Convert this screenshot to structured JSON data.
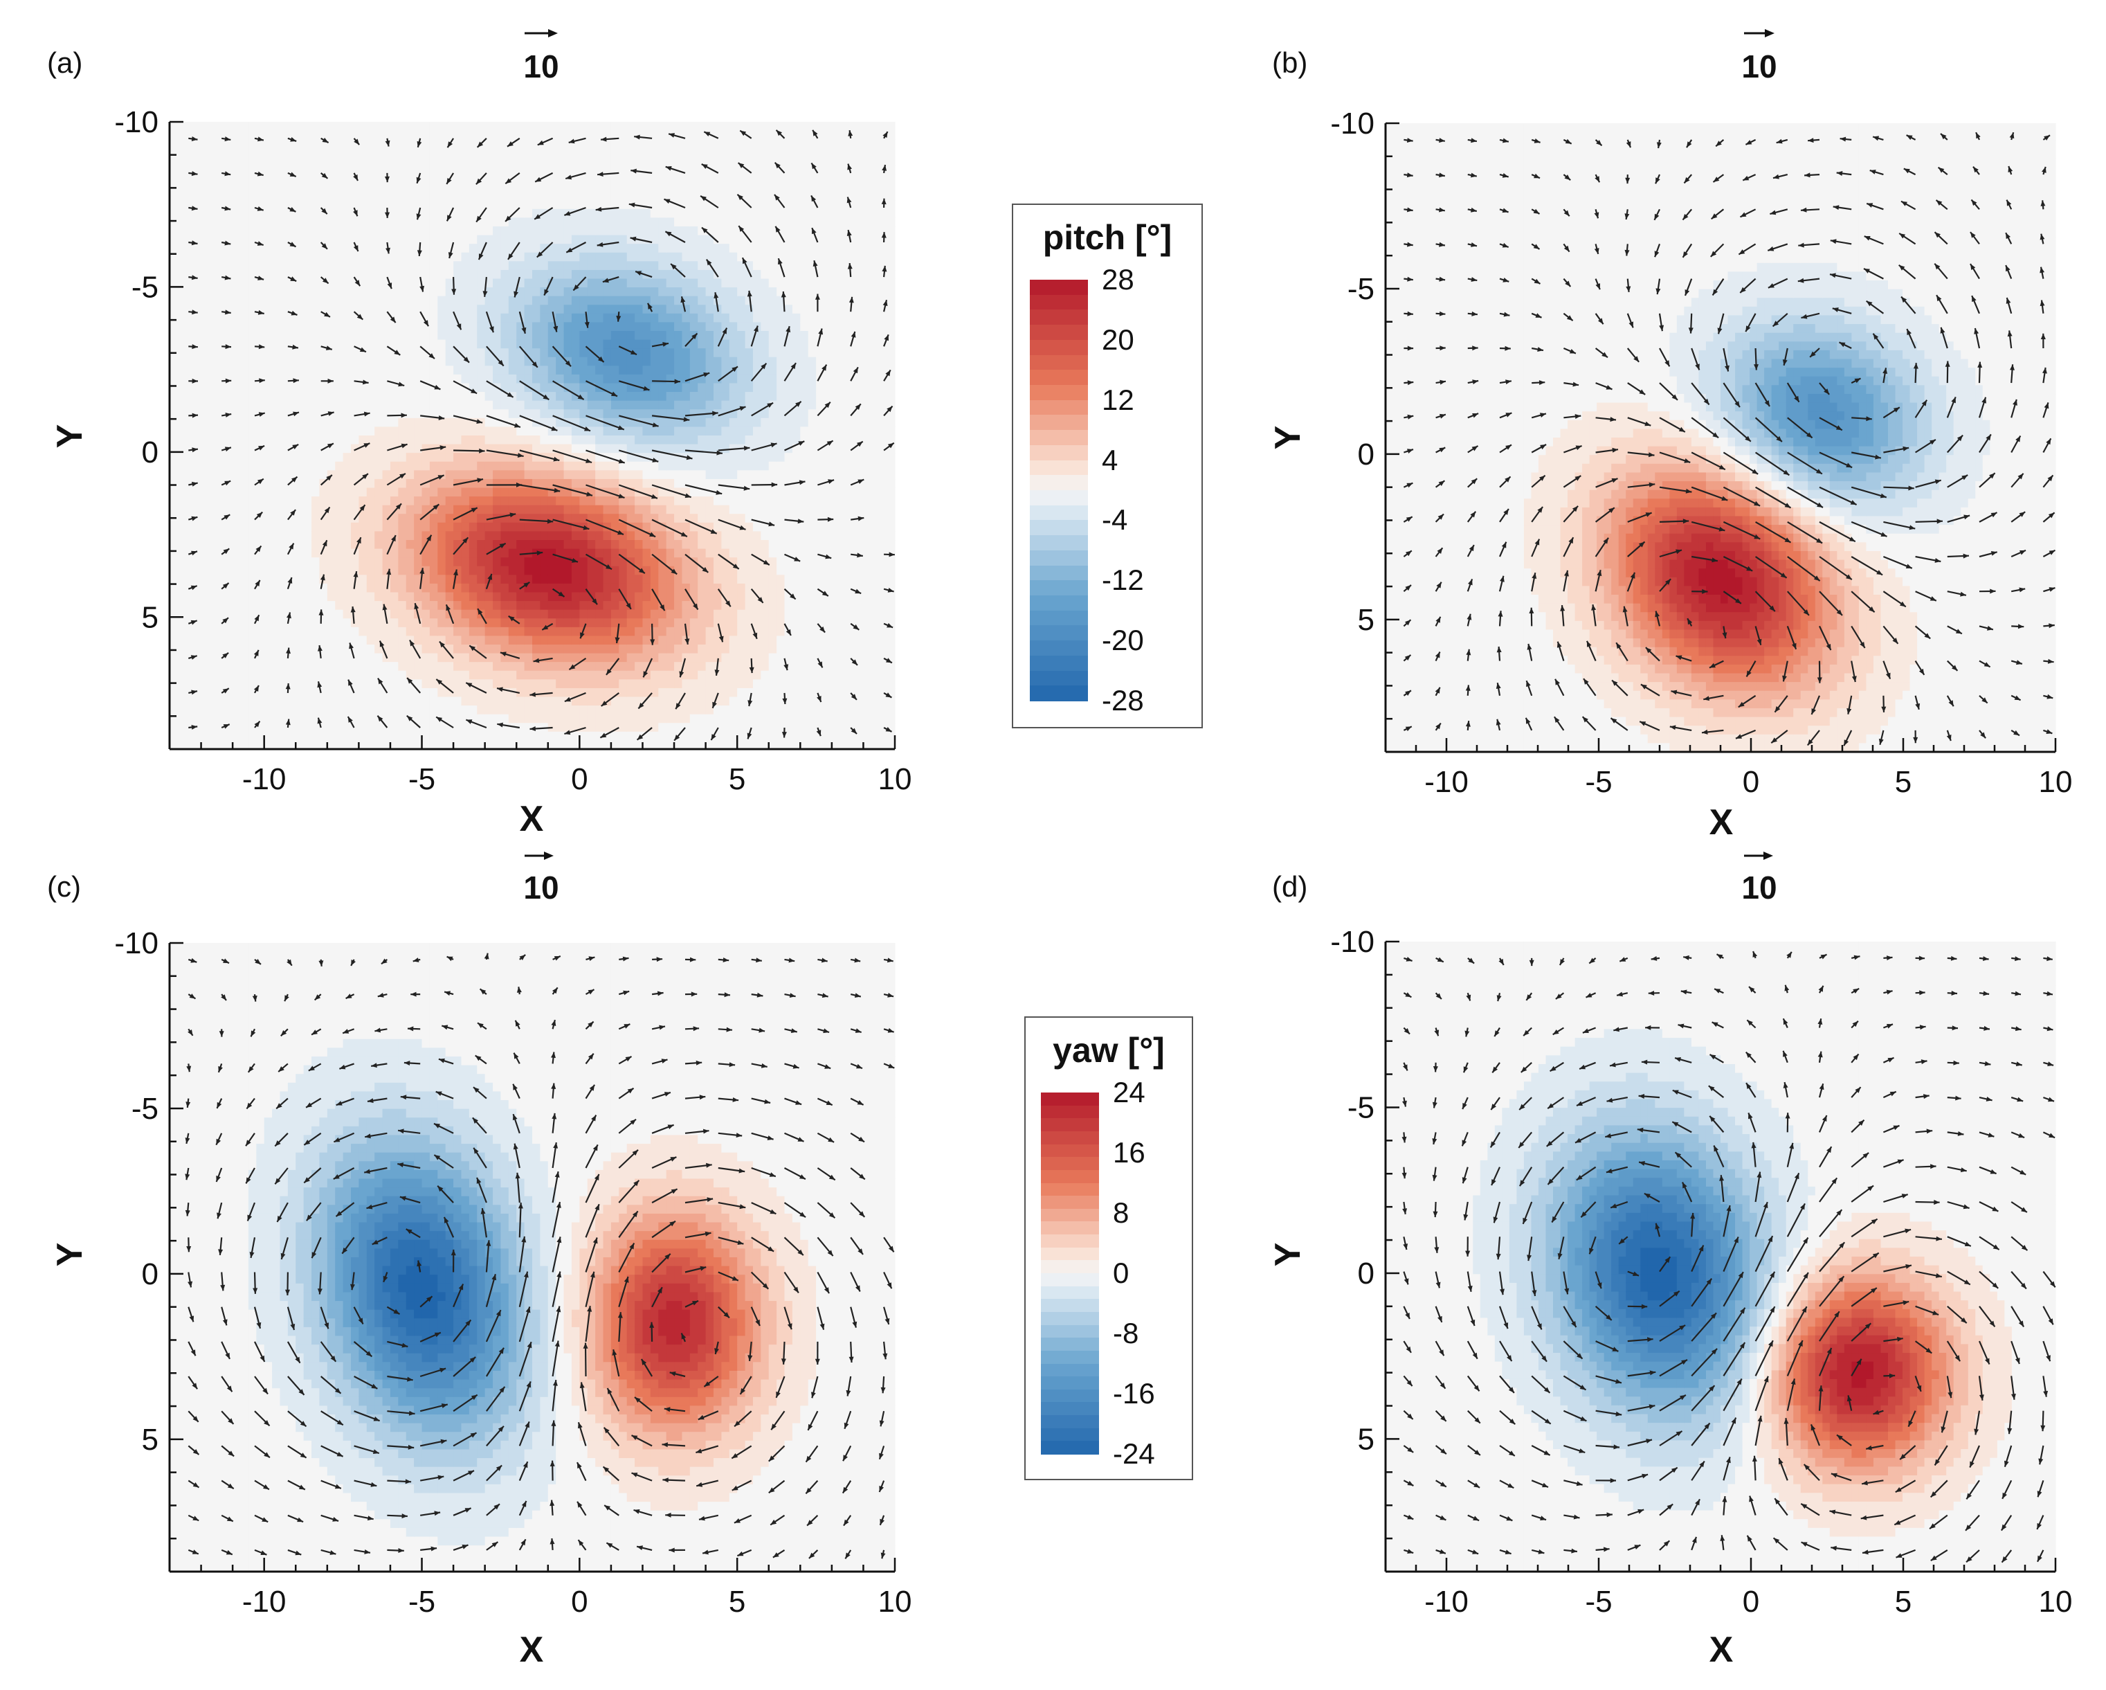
{
  "chart_data": [
    {
      "type": "heatmap",
      "panel_label": "(a)",
      "field": "pitch",
      "xlabel": "X",
      "ylabel": "Y",
      "xlim": [
        -13,
        10
      ],
      "ylim": [
        -10,
        9
      ],
      "y_inverted": true,
      "x_ticks": [
        "-10",
        "-5",
        "0",
        "5",
        "10"
      ],
      "y_ticks": [
        "-10",
        "-5",
        "0",
        "5"
      ],
      "reference_vector": "10",
      "extrema": [
        {
          "x": -1,
          "y": 3.5,
          "value": 28
        },
        {
          "x": 1.5,
          "y": -3,
          "value": -18
        }
      ]
    },
    {
      "type": "heatmap",
      "panel_label": "(b)",
      "field": "pitch",
      "xlabel": "X",
      "ylabel": "Y",
      "xlim": [
        -12,
        10
      ],
      "ylim": [
        -10,
        9
      ],
      "y_inverted": true,
      "x_ticks": [
        "-10",
        "-5",
        "0",
        "5",
        "10"
      ],
      "y_ticks": [
        "-10",
        "-5",
        "0",
        "5"
      ],
      "reference_vector": "10",
      "extrema": [
        {
          "x": -1,
          "y": 3.8,
          "value": 28
        },
        {
          "x": 2.3,
          "y": -1.2,
          "value": -18
        }
      ]
    },
    {
      "type": "heatmap",
      "panel_label": "(c)",
      "field": "yaw",
      "xlabel": "X",
      "ylabel": "Y",
      "xlim": [
        -13,
        10
      ],
      "ylim": [
        -10,
        9
      ],
      "y_inverted": true,
      "x_ticks": [
        "-10",
        "-5",
        "0",
        "5",
        "10"
      ],
      "y_ticks": [
        "-10",
        "-5",
        "0",
        "5"
      ],
      "reference_vector": "10",
      "extrema": [
        {
          "x": -5,
          "y": 0.5,
          "value": -24
        },
        {
          "x": 3,
          "y": 1.5,
          "value": 22
        }
      ]
    },
    {
      "type": "heatmap",
      "panel_label": "(d)",
      "field": "yaw",
      "xlabel": "X",
      "ylabel": "Y",
      "xlim": [
        -12,
        10
      ],
      "ylim": [
        -10,
        9
      ],
      "y_inverted": true,
      "x_ticks": [
        "-10",
        "-5",
        "0",
        "5",
        "10"
      ],
      "y_ticks": [
        "-10",
        "-5",
        "0",
        "5"
      ],
      "reference_vector": "10",
      "extrema": [
        {
          "x": -3,
          "y": 0,
          "value": -24
        },
        {
          "x": 3.5,
          "y": 3,
          "value": 24
        }
      ]
    }
  ],
  "colorbars": {
    "pitch": {
      "title": "pitch [°]",
      "min": -28,
      "max": 28,
      "labels": [
        "28",
        "20",
        "12",
        "4",
        "-4",
        "-12",
        "-20",
        "-28"
      ]
    },
    "yaw": {
      "title": "yaw [°]",
      "min": -24,
      "max": 24,
      "labels": [
        "24",
        "16",
        "8",
        "0",
        "-8",
        "-16",
        "-24"
      ]
    }
  },
  "colors": {
    "red_strong": "#b2182b",
    "red_mid": "#e8795a",
    "neutral": "#f5f5f5",
    "blue_mid": "#6aa5cf",
    "blue_strong": "#2166ac",
    "arrow": "#222222",
    "axis": "#111111"
  }
}
